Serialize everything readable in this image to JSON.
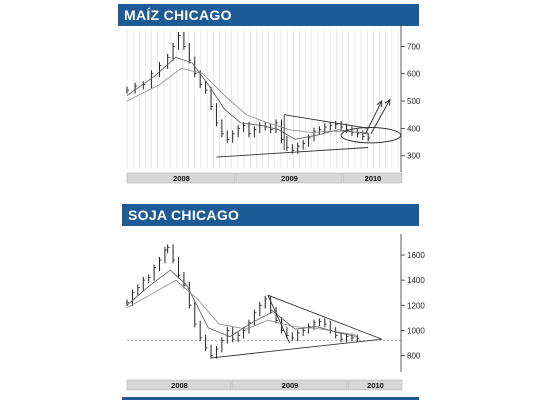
{
  "chart_data": [
    {
      "type": "line",
      "title": "MAÍZ CHICAGO",
      "ylim": [
        255,
        760
      ],
      "yticks": [
        300,
        400,
        500,
        600,
        700
      ],
      "years": [
        "2008",
        "2009",
        "2010"
      ],
      "grid": true,
      "price_series": [
        [
          0,
          540
        ],
        [
          3,
          555
        ],
        [
          6,
          560
        ],
        [
          9,
          600
        ],
        [
          12,
          630
        ],
        [
          15,
          660
        ],
        [
          17,
          700
        ],
        [
          19,
          740
        ],
        [
          21,
          700
        ],
        [
          23,
          650
        ],
        [
          25,
          600
        ],
        [
          27,
          560
        ],
        [
          29,
          540
        ],
        [
          31,
          480
        ],
        [
          33,
          420
        ],
        [
          35,
          380
        ],
        [
          37,
          360
        ],
        [
          39,
          380
        ],
        [
          41,
          400
        ],
        [
          43,
          410
        ],
        [
          45,
          380
        ],
        [
          47,
          395
        ],
        [
          49,
          410
        ],
        [
          51,
          405
        ],
        [
          53,
          395
        ],
        [
          55,
          420
        ],
        [
          57,
          360
        ],
        [
          59,
          330
        ],
        [
          61,
          320
        ],
        [
          63,
          335
        ],
        [
          65,
          345
        ],
        [
          67,
          365
        ],
        [
          69,
          390
        ],
        [
          71,
          395
        ],
        [
          73,
          405
        ],
        [
          75,
          410
        ],
        [
          77,
          415
        ],
        [
          79,
          405
        ],
        [
          81,
          395
        ],
        [
          83,
          385
        ],
        [
          85,
          380
        ],
        [
          87,
          370
        ],
        [
          89,
          365
        ]
      ],
      "moving_averages": [
        [
          [
            0,
            520
          ],
          [
            10,
            590
          ],
          [
            18,
            660
          ],
          [
            24,
            640
          ],
          [
            30,
            560
          ],
          [
            36,
            470
          ],
          [
            42,
            420
          ],
          [
            50,
            410
          ],
          [
            56,
            395
          ],
          [
            62,
            360
          ],
          [
            70,
            375
          ],
          [
            78,
            395
          ],
          [
            89,
            380
          ]
        ],
        [
          [
            0,
            500
          ],
          [
            12,
            560
          ],
          [
            20,
            620
          ],
          [
            28,
            600
          ],
          [
            36,
            520
          ],
          [
            44,
            450
          ],
          [
            52,
            420
          ],
          [
            60,
            395
          ],
          [
            68,
            385
          ],
          [
            76,
            390
          ],
          [
            89,
            385
          ]
        ]
      ],
      "trendlines": [
        [
          [
            33,
            295
          ],
          [
            89,
            330
          ]
        ],
        [
          [
            58,
            450
          ],
          [
            89,
            400
          ]
        ],
        [
          [
            58,
            450
          ],
          [
            58,
            320
          ]
        ]
      ],
      "arrows": [
        [
          [
            88,
            380
          ],
          [
            94,
            500
          ]
        ],
        [
          [
            90,
            380
          ],
          [
            97,
            505
          ]
        ]
      ],
      "ellipse": {
        "x": 90,
        "y": 375,
        "rx": 5,
        "ry": 40
      }
    },
    {
      "type": "line",
      "title": "SOJA CHICAGO",
      "ylim": [
        700,
        1720
      ],
      "yticks": [
        800,
        1000,
        1200,
        1400,
        1600
      ],
      "years": [
        "2008",
        "2009",
        "2010"
      ],
      "grid": false,
      "baseline": 920,
      "price_series": [
        [
          0,
          1220
        ],
        [
          2,
          1300
        ],
        [
          4,
          1340
        ],
        [
          6,
          1400
        ],
        [
          8,
          1420
        ],
        [
          10,
          1500
        ],
        [
          12,
          1560
        ],
        [
          14,
          1640
        ],
        [
          15,
          1660
        ],
        [
          17,
          1560
        ],
        [
          19,
          1440
        ],
        [
          21,
          1360
        ],
        [
          23,
          1200
        ],
        [
          25,
          1050
        ],
        [
          27,
          940
        ],
        [
          29,
          860
        ],
        [
          31,
          800
        ],
        [
          33,
          850
        ],
        [
          35,
          920
        ],
        [
          37,
          1000
        ],
        [
          39,
          930
        ],
        [
          41,
          960
        ],
        [
          43,
          1000
        ],
        [
          45,
          1060
        ],
        [
          47,
          1140
        ],
        [
          49,
          1200
        ],
        [
          51,
          1250
        ],
        [
          53,
          1160
        ],
        [
          55,
          1080
        ],
        [
          57,
          1000
        ],
        [
          59,
          960
        ],
        [
          61,
          940
        ],
        [
          63,
          980
        ],
        [
          65,
          1000
        ],
        [
          67,
          1030
        ],
        [
          69,
          1060
        ],
        [
          71,
          1070
        ],
        [
          73,
          1050
        ],
        [
          75,
          1000
        ],
        [
          77,
          960
        ],
        [
          79,
          930
        ],
        [
          81,
          950
        ],
        [
          83,
          940
        ],
        [
          85,
          935
        ]
      ],
      "moving_averages": [
        [
          [
            0,
            1200
          ],
          [
            8,
            1350
          ],
          [
            16,
            1480
          ],
          [
            22,
            1360
          ],
          [
            30,
            1020
          ],
          [
            38,
            950
          ],
          [
            46,
            1060
          ],
          [
            54,
            1150
          ],
          [
            62,
            1010
          ],
          [
            70,
            1030
          ],
          [
            78,
            980
          ],
          [
            85,
            950
          ]
        ],
        [
          [
            0,
            1180
          ],
          [
            10,
            1300
          ],
          [
            18,
            1400
          ],
          [
            26,
            1250
          ],
          [
            34,
            1050
          ],
          [
            44,
            1010
          ],
          [
            52,
            1080
          ],
          [
            62,
            1030
          ],
          [
            72,
            1010
          ],
          [
            85,
            960
          ]
        ]
      ],
      "trendlines": [
        [
          [
            31,
            780
          ],
          [
            94,
            930
          ]
        ],
        [
          [
            52,
            1280
          ],
          [
            94,
            930
          ]
        ],
        [
          [
            52,
            1280
          ],
          [
            60,
            900
          ]
        ]
      ]
    }
  ]
}
